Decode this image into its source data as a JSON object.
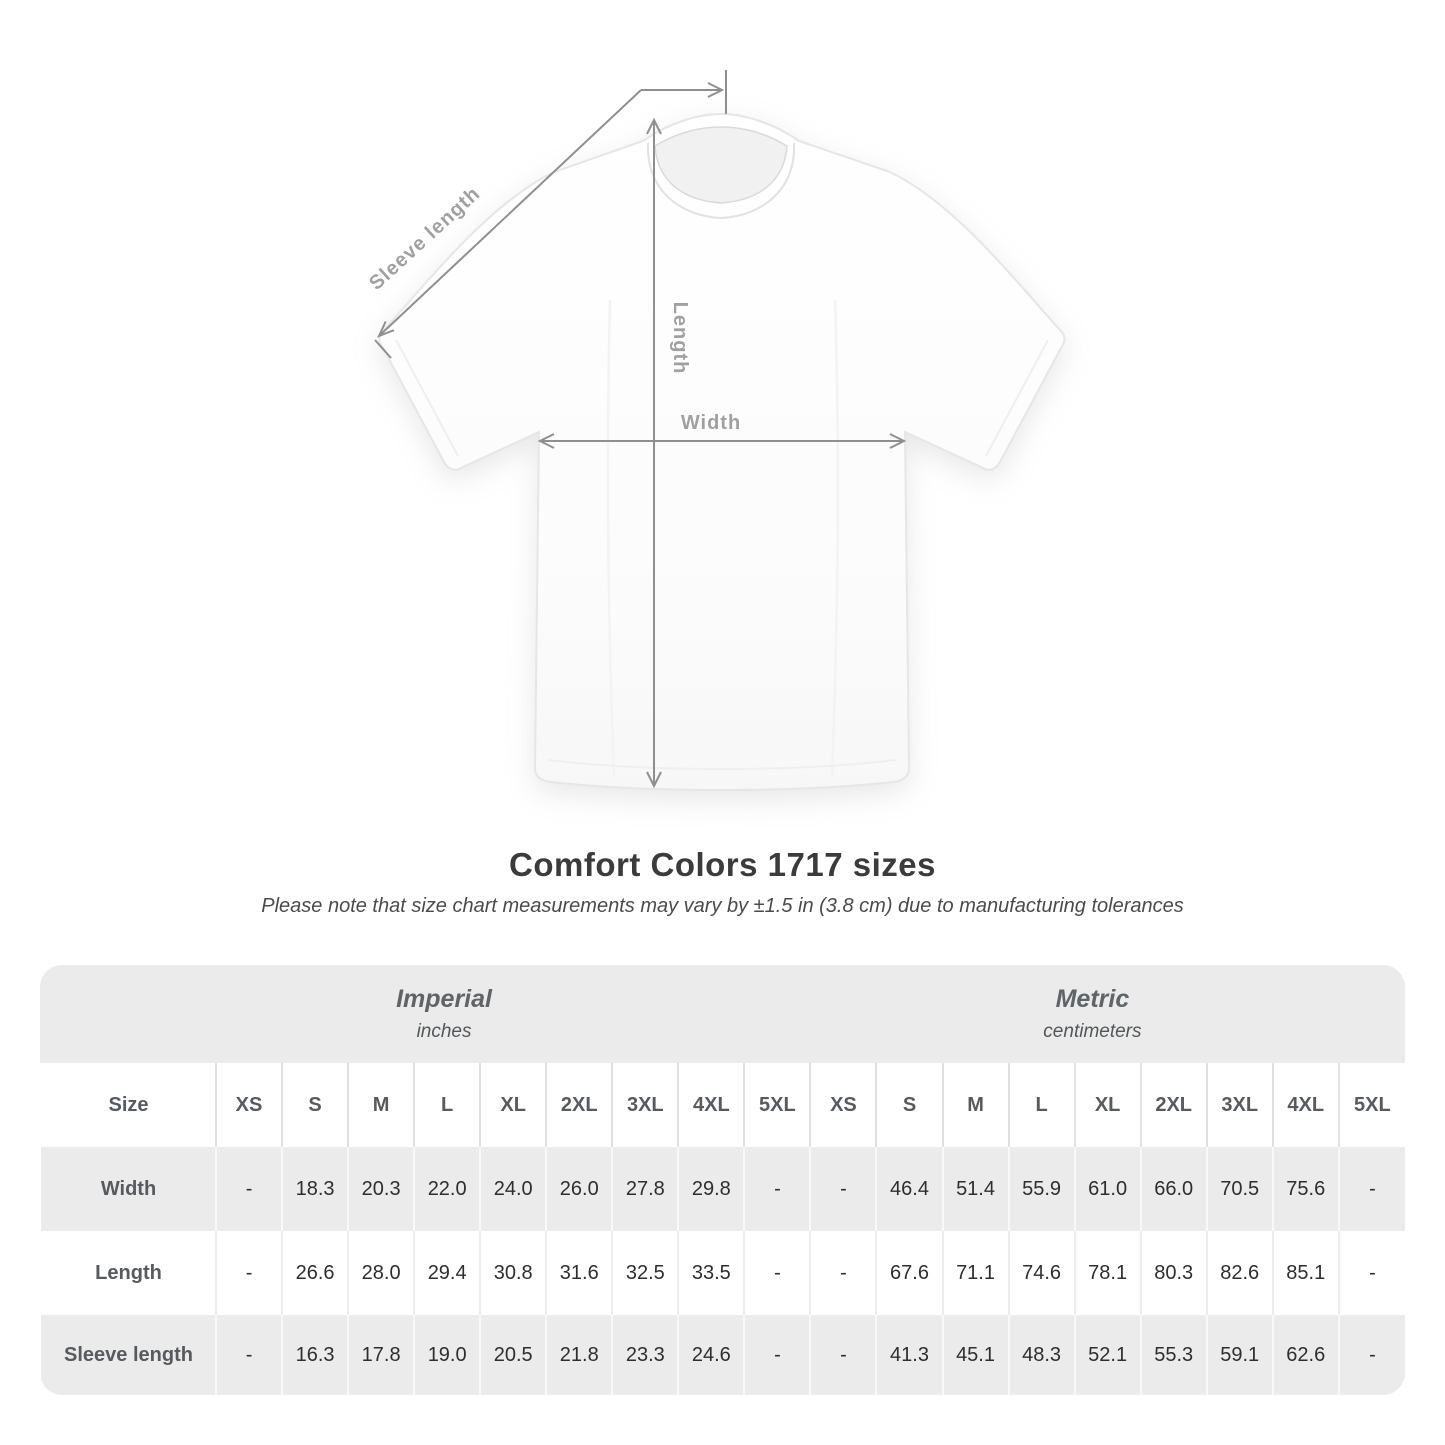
{
  "heading": {
    "title": "Comfort Colors 1717 sizes",
    "subtitle": "Please note that size chart measurements may vary by ±1.5 in (3.8 cm) due to manufacturing tolerances"
  },
  "diagram": {
    "labels": {
      "sleeve_length": "Sleeve length",
      "length": "Length",
      "width": "Width"
    },
    "arrow_color": "#8f8f8f",
    "label_color": "#a0a0a0",
    "shirt_color": "#ffffff"
  },
  "size_table": {
    "size_col_header": "Size",
    "unit_groups": [
      {
        "name": "Imperial",
        "unit": "inches"
      },
      {
        "name": "Metric",
        "unit": "centimeters"
      }
    ],
    "sizes": [
      "XS",
      "S",
      "M",
      "L",
      "XL",
      "2XL",
      "3XL",
      "4XL",
      "5XL"
    ],
    "rows": [
      {
        "label": "Width",
        "imperial": [
          "-",
          "18.3",
          "20.3",
          "22.0",
          "24.0",
          "26.0",
          "27.8",
          "29.8",
          "-"
        ],
        "metric": [
          "-",
          "46.4",
          "51.4",
          "55.9",
          "61.0",
          "66.0",
          "70.5",
          "75.6",
          "-"
        ]
      },
      {
        "label": "Length",
        "imperial": [
          "-",
          "26.6",
          "28.0",
          "29.4",
          "30.8",
          "31.6",
          "32.5",
          "33.5",
          "-"
        ],
        "metric": [
          "-",
          "67.6",
          "71.1",
          "74.6",
          "78.1",
          "80.3",
          "82.6",
          "85.1",
          "-"
        ]
      },
      {
        "label": "Sleeve length",
        "imperial": [
          "-",
          "16.3",
          "17.8",
          "19.0",
          "20.5",
          "21.8",
          "23.3",
          "24.6",
          "-"
        ],
        "metric": [
          "-",
          "41.3",
          "45.1",
          "48.3",
          "52.1",
          "55.3",
          "59.1",
          "62.6",
          "-"
        ]
      }
    ],
    "colors": {
      "band_gray": "#ebebeb",
      "row_gray": "#ebebeb",
      "row_white": "#ffffff",
      "header_text": "#565b5f",
      "value_text": "#2e2e2e"
    }
  },
  "chart_data": {
    "type": "table",
    "title": "Comfort Colors 1717 sizes",
    "note": "Please note that size chart measurements may vary by ±1.5 in (3.8 cm) due to manufacturing tolerances",
    "column_groups": [
      "Imperial (inches)",
      "Metric (centimeters)"
    ],
    "sizes": [
      "XS",
      "S",
      "M",
      "L",
      "XL",
      "2XL",
      "3XL",
      "4XL",
      "5XL"
    ],
    "rows": [
      {
        "measurement": "Width",
        "imperial_in": [
          null,
          18.3,
          20.3,
          22.0,
          24.0,
          26.0,
          27.8,
          29.8,
          null
        ],
        "metric_cm": [
          null,
          46.4,
          51.4,
          55.9,
          61.0,
          66.0,
          70.5,
          75.6,
          null
        ]
      },
      {
        "measurement": "Length",
        "imperial_in": [
          null,
          26.6,
          28.0,
          29.4,
          30.8,
          31.6,
          32.5,
          33.5,
          null
        ],
        "metric_cm": [
          null,
          67.6,
          71.1,
          74.6,
          78.1,
          80.3,
          82.6,
          85.1,
          null
        ]
      },
      {
        "measurement": "Sleeve length",
        "imperial_in": [
          null,
          16.3,
          17.8,
          19.0,
          20.5,
          21.8,
          23.3,
          24.6,
          null
        ],
        "metric_cm": [
          null,
          41.3,
          45.1,
          48.3,
          52.1,
          55.3,
          59.1,
          62.6,
          null
        ]
      }
    ]
  }
}
